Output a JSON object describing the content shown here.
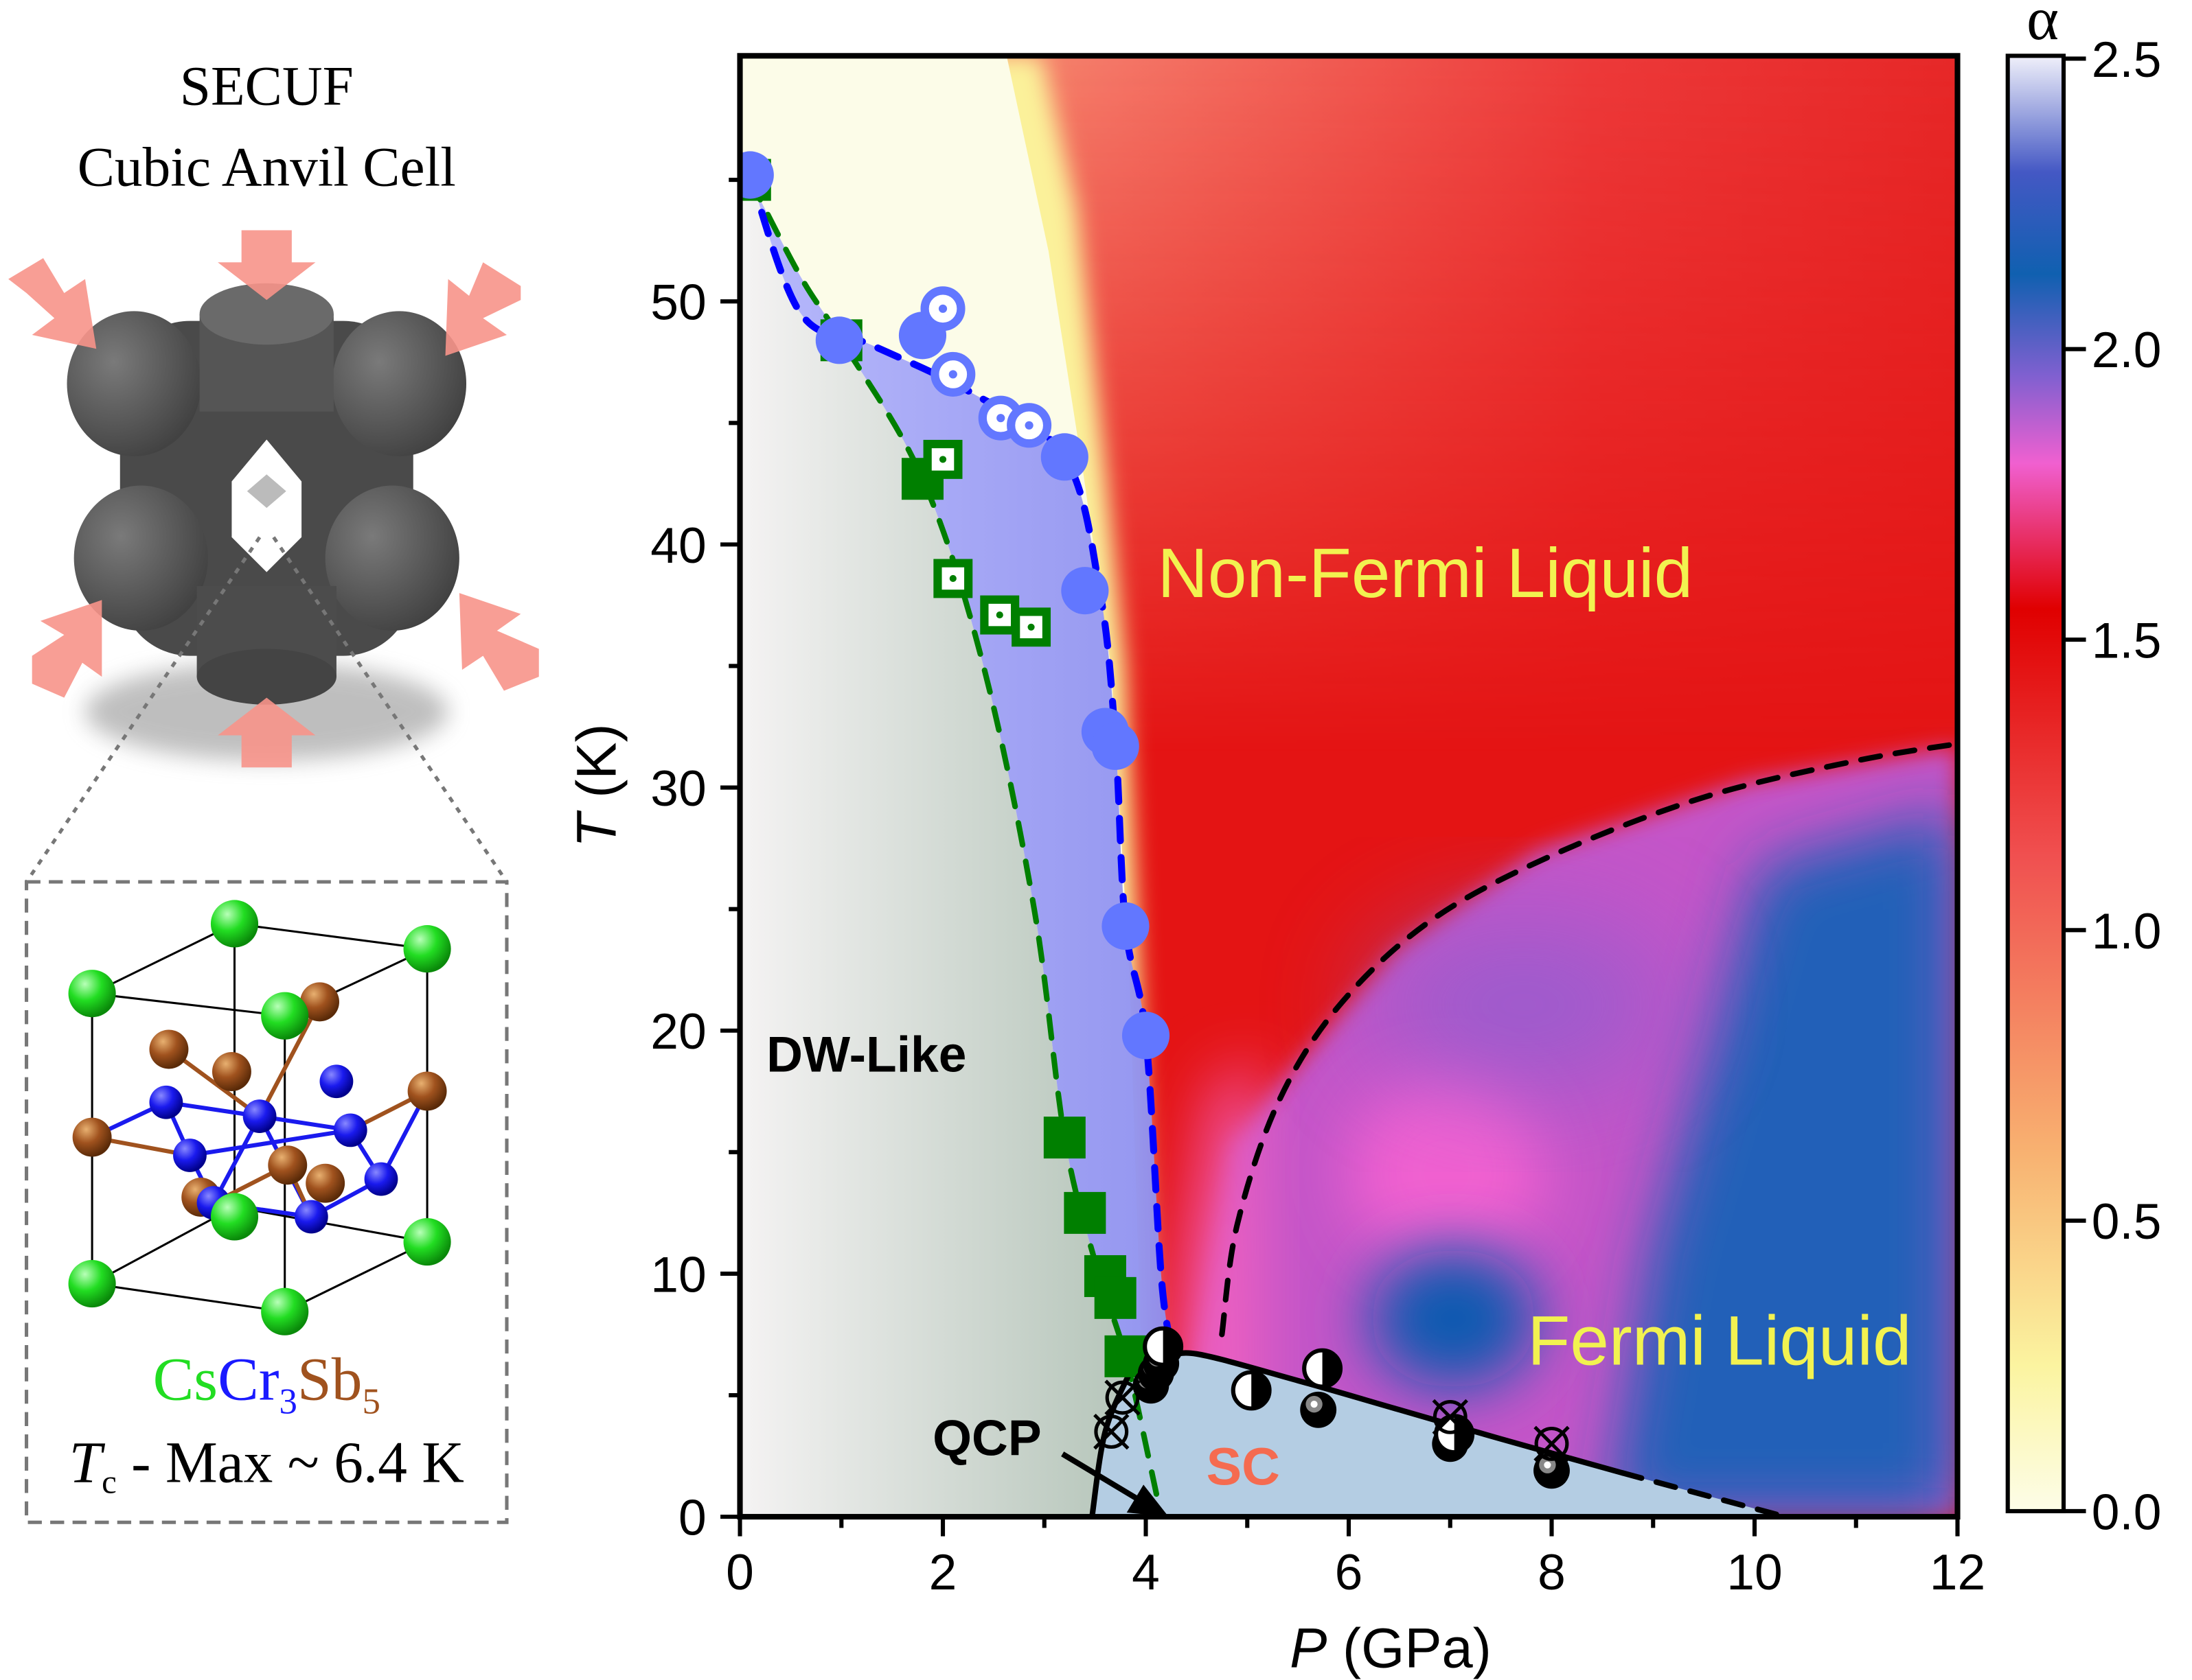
{
  "left_panel": {
    "title_line1": "SECUF",
    "title_line2": "Cubic Anvil Cell",
    "formula": {
      "cs": "Cs",
      "cr": "Cr",
      "cr_sub": "3",
      "sb": "Sb",
      "sb_sub": "5"
    },
    "tc_symbol": "T",
    "tc_sub": "c",
    "tc_text": " - Max ~ 6.4 K",
    "colors": {
      "cs": "#22dd22",
      "cr": "#1a1aff",
      "sb": "#a0521e",
      "arrow": "#f7948a"
    }
  },
  "chart_data": {
    "type": "scatter",
    "xlabel_italic": "P",
    "xlabel_unit": " (GPa)",
    "ylabel_italic": "T",
    "ylabel_unit": " (K)",
    "xlim": [
      0,
      12
    ],
    "ylim": [
      0,
      60
    ],
    "xticks": [
      "0",
      "2",
      "4",
      "6",
      "8",
      "10",
      "12"
    ],
    "yticks": [
      "0",
      "10",
      "20",
      "30",
      "40",
      "50"
    ],
    "grid": false,
    "background": "heatmap of resistivity exponent α",
    "colorbar": {
      "label": "α",
      "range": [
        0,
        2.5
      ],
      "ticks": [
        "0.0",
        "0.5",
        "1.0",
        "1.5",
        "2.0",
        "2.5"
      ],
      "colors": [
        "#fdfde8",
        "#fbe98a",
        "#f6a070",
        "#f05050",
        "#e00000",
        "#f060d0",
        "#1060b0",
        "#4050c0",
        "#e8e8f8"
      ]
    },
    "series": [
      {
        "marker": "filled-square",
        "color": "#007f00",
        "points": [
          [
            0.1,
            55.0
          ],
          [
            1.0,
            48.4
          ],
          [
            1.8,
            42.7
          ],
          [
            3.2,
            15.6
          ],
          [
            3.4,
            12.5
          ],
          [
            3.6,
            9.9
          ],
          [
            3.7,
            9.0
          ],
          [
            3.8,
            6.6
          ]
        ]
      },
      {
        "marker": "open-square-dot",
        "color": "#007f00",
        "points": [
          [
            2.0,
            43.5
          ],
          [
            2.1,
            38.6
          ],
          [
            2.56,
            37.1
          ],
          [
            2.87,
            36.6
          ]
        ]
      },
      {
        "marker": "filled-circle",
        "color": "#6277ff",
        "points": [
          [
            0.1,
            55.2
          ],
          [
            0.98,
            48.4
          ],
          [
            1.8,
            48.6
          ],
          [
            3.2,
            43.6
          ],
          [
            3.4,
            38.1
          ],
          [
            3.6,
            32.3
          ],
          [
            3.7,
            31.7
          ],
          [
            3.8,
            24.3
          ],
          [
            4.0,
            19.8
          ]
        ]
      },
      {
        "marker": "open-circle-dot",
        "color": "#6277ff",
        "points": [
          [
            2.0,
            49.7
          ],
          [
            2.1,
            47.0
          ],
          [
            2.57,
            45.2
          ],
          [
            2.85,
            44.9
          ]
        ]
      },
      {
        "marker": "filled-circle-gray-center",
        "color": "#000000",
        "points": [
          [
            4.05,
            5.4
          ],
          [
            4.1,
            5.9
          ],
          [
            4.15,
            6.3
          ],
          [
            5.7,
            4.4
          ],
          [
            7.0,
            3.0
          ],
          [
            8.0,
            1.9
          ]
        ]
      },
      {
        "marker": "half-filled-circle",
        "color": "#000000",
        "points": [
          [
            4.17,
            7.0
          ],
          [
            5.04,
            5.2
          ],
          [
            5.74,
            6.1
          ],
          [
            7.04,
            3.4
          ]
        ]
      },
      {
        "marker": "crossed-circle",
        "color": "#000000",
        "points": [
          [
            3.66,
            3.5
          ],
          [
            3.77,
            4.9
          ],
          [
            7.0,
            4.1
          ],
          [
            8.0,
            3.0
          ]
        ]
      }
    ],
    "lines": {
      "dw_boundary": {
        "style": "dashed",
        "color": "#007f00",
        "points": [
          [
            0.1,
            55
          ],
          [
            0.6,
            51
          ],
          [
            1.0,
            48.4
          ],
          [
            1.8,
            42.7
          ],
          [
            2.4,
            35
          ],
          [
            2.9,
            25
          ],
          [
            3.2,
            15.6
          ],
          [
            3.5,
            10.5
          ],
          [
            3.8,
            6.6
          ],
          [
            4.05,
            2
          ],
          [
            4.15,
            0
          ]
        ]
      },
      "nfl_boundary": {
        "style": "dashed",
        "color": "#0000ff",
        "points": [
          [
            0.1,
            55.2
          ],
          [
            0.6,
            49.5
          ],
          [
            1.3,
            48.2
          ],
          [
            2.3,
            46.2
          ],
          [
            3.2,
            43.6
          ],
          [
            3.55,
            38
          ],
          [
            3.7,
            32
          ],
          [
            3.8,
            24.3
          ],
          [
            4.0,
            19.8
          ],
          [
            4.15,
            10
          ],
          [
            4.25,
            7
          ]
        ]
      },
      "fl_boundary": {
        "style": "dashed",
        "color": "#000000",
        "points": [
          [
            4.75,
            7.5
          ],
          [
            4.9,
            12
          ],
          [
            5.3,
            17
          ],
          [
            5.9,
            21
          ],
          [
            6.8,
            24.5
          ],
          [
            8,
            27.2
          ],
          [
            9.5,
            29.6
          ],
          [
            11,
            31.1
          ],
          [
            12,
            31.8
          ]
        ]
      },
      "sc_dome": {
        "style": "solid",
        "color": "#000000",
        "points": [
          [
            4.2,
            6.5
          ],
          [
            4.5,
            6.7
          ],
          [
            5.5,
            5.6
          ],
          [
            6.5,
            4.4
          ],
          [
            7.5,
            3.2
          ],
          [
            8.7,
            1.8
          ]
        ]
      },
      "sc_dome_extrapolated": {
        "style": "dashed",
        "color": "#000000",
        "points": [
          [
            8.7,
            1.8
          ],
          [
            9.5,
            0.9
          ],
          [
            10.3,
            0
          ]
        ]
      },
      "qcp_line": {
        "style": "solid",
        "color": "#000000",
        "points": [
          [
            3.47,
            0
          ],
          [
            3.6,
            3.5
          ],
          [
            3.85,
            6
          ]
        ]
      }
    },
    "annotations": {
      "non_fermi_liquid": "Non-Fermi Liquid",
      "fermi_liquid": "Fermi Liquid",
      "dw_like": "DW-Like",
      "sc": "SC",
      "qcp": "QCP"
    }
  }
}
